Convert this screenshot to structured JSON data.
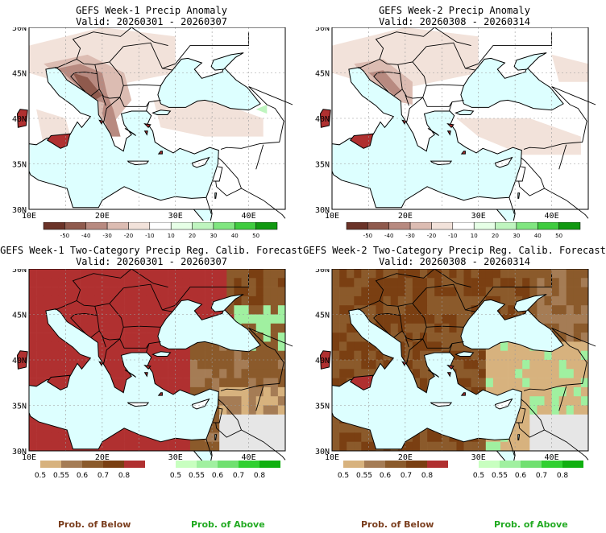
{
  "panels": [
    {
      "id": "p1",
      "title": "GEFS Week-1 Precip Anomaly",
      "valid": "Valid: 20260301 - 20260307"
    },
    {
      "id": "p2",
      "title": "GEFS Week-2 Precip Anomaly",
      "valid": "Valid: 20260308 - 20260314"
    },
    {
      "id": "p3",
      "title": "GEFS Week-1 Two-Category Precip Reg. Calib. Forecast",
      "valid": "Valid: 20260301 - 20260307"
    },
    {
      "id": "p4",
      "title": "GEFS Week-2 Two-Category Precip Reg. Calib. Forecast",
      "valid": "Valid: 20260308 - 20260314"
    }
  ],
  "lat_labels": [
    "50N",
    "45N",
    "40N",
    "35N",
    "30N"
  ],
  "lon_labels": [
    "10E",
    "20E",
    "30E",
    "40E"
  ],
  "anomaly_colorbar": {
    "colors": [
      "#6b3328",
      "#8f5a4d",
      "#b88a80",
      "#dcbcb2",
      "#f2e2da",
      "#ffffff",
      "#e6ffe6",
      "#bff5bf",
      "#80e680",
      "#3fcc3f",
      "#119911"
    ],
    "labels": [
      "-50",
      "-40",
      "-30",
      "-20",
      "-10",
      "10",
      "20",
      "30",
      "40",
      "50"
    ]
  },
  "prob_below_colorbar": {
    "colors": [
      "#d7b27e",
      "#a57c55",
      "#8b5a2b",
      "#7a3f12",
      "#b03030"
    ],
    "labels": [
      "0.5",
      "0.55",
      "0.6",
      "0.7",
      "0.8"
    ]
  },
  "prob_above_colorbar": {
    "colors": [
      "#c8ffc0",
      "#a0f0a0",
      "#70e070",
      "#30d030",
      "#10b010"
    ],
    "labels": [
      "0.5",
      "0.55",
      "0.6",
      "0.7",
      "0.8"
    ]
  },
  "legend": {
    "below": "Prob. of Below",
    "above": "Prob. of Above"
  },
  "colors": {
    "below_text": "#7b3f1f",
    "above_text": "#22aa22",
    "sea": "#ddffff",
    "land_gray": "#e6e6e6"
  }
}
